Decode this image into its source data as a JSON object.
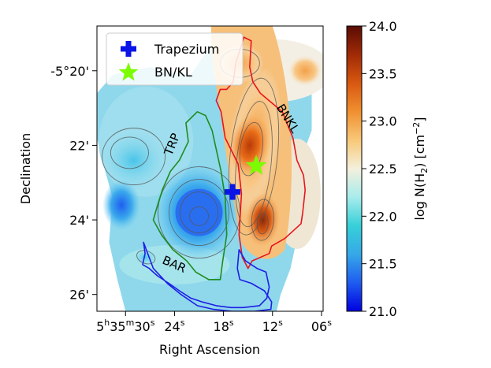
{
  "chart_data": {
    "type": "heatmap",
    "xlabel": "Right Ascension",
    "ylabel": "Declination",
    "x_ticks": [
      {
        "value": 30,
        "label_parts": [
          "5",
          "h",
          "35",
          "m",
          "30",
          "s"
        ]
      },
      {
        "value": 24,
        "label_parts": [
          "24",
          "s"
        ]
      },
      {
        "value": 18,
        "label_parts": [
          "18",
          "s"
        ]
      },
      {
        "value": 12,
        "label_parts": [
          "12",
          "s"
        ]
      },
      {
        "value": 6,
        "label_parts": [
          "06",
          "s"
        ]
      }
    ],
    "y_ticks": [
      {
        "value": -20,
        "label": "-5°20'"
      },
      {
        "value": -22,
        "label": "22'"
      },
      {
        "value": -24,
        "label": "24'"
      },
      {
        "value": -26,
        "label": "26'"
      }
    ],
    "xlim": [
      33.5,
      5.8
    ],
    "ylim": [
      -26.45,
      -18.8
    ],
    "colorbar": {
      "label_prefix": "log N(H",
      "label_sub": "2",
      "label_mid": ") [cm",
      "label_sup": "−2",
      "label_suffix": "]",
      "min": 21.0,
      "max": 24.0,
      "ticks": [
        "21.0",
        "21.5",
        "22.0",
        "22.5",
        "23.0",
        "23.5",
        "24.0"
      ],
      "colormap": [
        "#0000e0",
        "#1f5cf0",
        "#36a8e8",
        "#36d0d8",
        "#a8ecec",
        "#f4f0dc",
        "#f8c878",
        "#f09030",
        "#d85810",
        "#a02a06",
        "#5a0c04"
      ]
    },
    "legend": {
      "placement": "top-left",
      "entries": [
        {
          "label": "Trapezium",
          "marker": "plus",
          "color": "#0a14e6"
        },
        {
          "label": "BN/KL",
          "marker": "star",
          "color": "#7cfc00"
        }
      ]
    },
    "points": [
      {
        "name": "Trapezium",
        "x": 16.9,
        "y": -23.25,
        "marker": "plus",
        "color": "#0a14e6"
      },
      {
        "name": "BN/KL",
        "x": 14.0,
        "y": -22.55,
        "marker": "star",
        "color": "#7cfc00"
      }
    ],
    "regions": [
      {
        "label": "BNKL",
        "color": "#e8141e",
        "vertices": [
          [
            15.5,
            -19.1
          ],
          [
            14.6,
            -19.2
          ],
          [
            14.8,
            -19.9
          ],
          [
            14.4,
            -20.3
          ],
          [
            13.5,
            -20.6
          ],
          [
            10.8,
            -21.1
          ],
          [
            9.5,
            -21.8
          ],
          [
            9.0,
            -22.4
          ],
          [
            8.2,
            -22.8
          ],
          [
            8.0,
            -23.2
          ],
          [
            8.3,
            -23.8
          ],
          [
            8.5,
            -24.1
          ],
          [
            10.5,
            -24.5
          ],
          [
            12.1,
            -24.7
          ],
          [
            12.4,
            -24.9
          ],
          [
            14.5,
            -25.1
          ],
          [
            15.0,
            -25.3
          ],
          [
            15.7,
            -25.0
          ],
          [
            16.1,
            -24.4
          ],
          [
            15.8,
            -23.3
          ],
          [
            16.2,
            -22.5
          ],
          [
            17.8,
            -21.8
          ],
          [
            18.3,
            -21.1
          ],
          [
            18.9,
            -20.8
          ],
          [
            18.4,
            -20.5
          ],
          [
            17.6,
            -20.5
          ],
          [
            16.8,
            -20.3
          ],
          [
            16.5,
            -19.8
          ],
          [
            15.5,
            -19.1
          ]
        ]
      },
      {
        "label": "TRP",
        "color": "#1e8c1e",
        "vertices": [
          [
            22.6,
            -21.4
          ],
          [
            22.3,
            -21.9
          ],
          [
            23.4,
            -22.4
          ],
          [
            24.5,
            -22.7
          ],
          [
            25.5,
            -23.2
          ],
          [
            26.2,
            -23.7
          ],
          [
            26.6,
            -24.0
          ],
          [
            25.6,
            -24.4
          ],
          [
            24.2,
            -24.8
          ],
          [
            22.5,
            -25.1
          ],
          [
            21.4,
            -25.4
          ],
          [
            19.8,
            -25.6
          ],
          [
            18.4,
            -25.6
          ],
          [
            18.1,
            -25.1
          ],
          [
            17.6,
            -24.4
          ],
          [
            17.8,
            -23.4
          ],
          [
            18.3,
            -22.7
          ],
          [
            18.9,
            -22.1
          ],
          [
            19.4,
            -21.6
          ],
          [
            20.2,
            -21.2
          ],
          [
            21.2,
            -21.1
          ],
          [
            22.6,
            -21.4
          ]
        ]
      },
      {
        "label": "BAR",
        "color": "#1e1ee6",
        "vertices": [
          [
            27.8,
            -24.6
          ],
          [
            27.6,
            -24.9
          ],
          [
            27.9,
            -25.2
          ],
          [
            27.1,
            -25.3
          ],
          [
            26.1,
            -25.5
          ],
          [
            24.7,
            -25.7
          ],
          [
            23.4,
            -25.9
          ],
          [
            22.0,
            -26.1
          ],
          [
            20.6,
            -26.2
          ],
          [
            18.9,
            -26.3
          ],
          [
            17.1,
            -26.35
          ],
          [
            15.6,
            -26.35
          ],
          [
            13.6,
            -26.3
          ],
          [
            12.7,
            -26.1
          ],
          [
            12.4,
            -25.8
          ],
          [
            12.8,
            -25.4
          ],
          [
            13.9,
            -25.3
          ],
          [
            15.3,
            -25.1
          ],
          [
            16.1,
            -24.8
          ],
          [
            16.3,
            -25.3
          ],
          [
            16.0,
            -25.6
          ],
          [
            14.6,
            -25.7
          ],
          [
            13.0,
            -25.9
          ],
          [
            12.1,
            -26.2
          ],
          [
            12.2,
            -26.4
          ],
          [
            14.2,
            -26.45
          ],
          [
            17.0,
            -26.45
          ],
          [
            19.2,
            -26.4
          ],
          [
            21.2,
            -26.3
          ],
          [
            23.2,
            -26.0
          ],
          [
            24.9,
            -25.7
          ],
          [
            26.6,
            -25.3
          ],
          [
            27.8,
            -24.6
          ]
        ]
      }
    ]
  }
}
